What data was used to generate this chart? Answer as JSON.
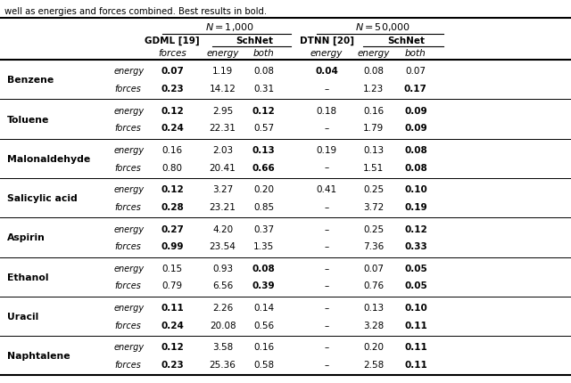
{
  "caption_top": "well as energies and forces combined. Best results in bold.",
  "molecules": [
    "Benzene",
    "Toluene",
    "Malonaldehyde",
    "Salicylic acid",
    "Aspirin",
    "Ethanol",
    "Uracil",
    "Naphtalene"
  ],
  "rows": {
    "Benzene": {
      "energy": {
        "gdml": "0.07",
        "schnet_e": "1.19",
        "schnet_b": "0.08",
        "dtnn": "0.04",
        "schnet50_e": "0.08",
        "schnet50_b": "0.07"
      },
      "forces": {
        "gdml": "0.23",
        "schnet_e": "14.12",
        "schnet_b": "0.31",
        "dtnn": "–",
        "schnet50_e": "1.23",
        "schnet50_b": "0.17"
      }
    },
    "Toluene": {
      "energy": {
        "gdml": "0.12",
        "schnet_e": "2.95",
        "schnet_b": "0.12",
        "dtnn": "0.18",
        "schnet50_e": "0.16",
        "schnet50_b": "0.09"
      },
      "forces": {
        "gdml": "0.24",
        "schnet_e": "22.31",
        "schnet_b": "0.57",
        "dtnn": "–",
        "schnet50_e": "1.79",
        "schnet50_b": "0.09"
      }
    },
    "Malonaldehyde": {
      "energy": {
        "gdml": "0.16",
        "schnet_e": "2.03",
        "schnet_b": "0.13",
        "dtnn": "0.19",
        "schnet50_e": "0.13",
        "schnet50_b": "0.08"
      },
      "forces": {
        "gdml": "0.80",
        "schnet_e": "20.41",
        "schnet_b": "0.66",
        "dtnn": "–",
        "schnet50_e": "1.51",
        "schnet50_b": "0.08"
      }
    },
    "Salicylic acid": {
      "energy": {
        "gdml": "0.12",
        "schnet_e": "3.27",
        "schnet_b": "0.20",
        "dtnn": "0.41",
        "schnet50_e": "0.25",
        "schnet50_b": "0.10"
      },
      "forces": {
        "gdml": "0.28",
        "schnet_e": "23.21",
        "schnet_b": "0.85",
        "dtnn": "–",
        "schnet50_e": "3.72",
        "schnet50_b": "0.19"
      }
    },
    "Aspirin": {
      "energy": {
        "gdml": "0.27",
        "schnet_e": "4.20",
        "schnet_b": "0.37",
        "dtnn": "–",
        "schnet50_e": "0.25",
        "schnet50_b": "0.12"
      },
      "forces": {
        "gdml": "0.99",
        "schnet_e": "23.54",
        "schnet_b": "1.35",
        "dtnn": "–",
        "schnet50_e": "7.36",
        "schnet50_b": "0.33"
      }
    },
    "Ethanol": {
      "energy": {
        "gdml": "0.15",
        "schnet_e": "0.93",
        "schnet_b": "0.08",
        "dtnn": "–",
        "schnet50_e": "0.07",
        "schnet50_b": "0.05"
      },
      "forces": {
        "gdml": "0.79",
        "schnet_e": "6.56",
        "schnet_b": "0.39",
        "dtnn": "–",
        "schnet50_e": "0.76",
        "schnet50_b": "0.05"
      }
    },
    "Uracil": {
      "energy": {
        "gdml": "0.11",
        "schnet_e": "2.26",
        "schnet_b": "0.14",
        "dtnn": "–",
        "schnet50_e": "0.13",
        "schnet50_b": "0.10"
      },
      "forces": {
        "gdml": "0.24",
        "schnet_e": "20.08",
        "schnet_b": "0.56",
        "dtnn": "–",
        "schnet50_e": "3.28",
        "schnet50_b": "0.11"
      }
    },
    "Naphtalene": {
      "energy": {
        "gdml": "0.12",
        "schnet_e": "3.58",
        "schnet_b": "0.16",
        "dtnn": "–",
        "schnet50_e": "0.20",
        "schnet50_b": "0.11"
      },
      "forces": {
        "gdml": "0.23",
        "schnet_e": "25.36",
        "schnet_b": "0.58",
        "dtnn": "–",
        "schnet50_e": "2.58",
        "schnet50_b": "0.11"
      }
    }
  },
  "bold_flags": {
    "Benzene": {
      "energy": [
        true,
        false,
        false,
        true,
        false,
        false
      ],
      "forces": [
        true,
        false,
        false,
        false,
        false,
        true
      ]
    },
    "Toluene": {
      "energy": [
        true,
        false,
        true,
        false,
        false,
        true
      ],
      "forces": [
        true,
        false,
        false,
        false,
        false,
        true
      ]
    },
    "Malonaldehyde": {
      "energy": [
        false,
        false,
        true,
        false,
        false,
        true
      ],
      "forces": [
        false,
        false,
        true,
        false,
        false,
        true
      ]
    },
    "Salicylic acid": {
      "energy": [
        true,
        false,
        false,
        false,
        false,
        true
      ],
      "forces": [
        true,
        false,
        false,
        false,
        false,
        true
      ]
    },
    "Aspirin": {
      "energy": [
        true,
        false,
        false,
        false,
        false,
        true
      ],
      "forces": [
        true,
        false,
        false,
        false,
        false,
        true
      ]
    },
    "Ethanol": {
      "energy": [
        false,
        false,
        true,
        false,
        false,
        true
      ],
      "forces": [
        false,
        false,
        true,
        false,
        false,
        true
      ]
    },
    "Uracil": {
      "energy": [
        true,
        false,
        false,
        false,
        false,
        true
      ],
      "forces": [
        true,
        false,
        false,
        false,
        false,
        true
      ]
    },
    "Naphtalene": {
      "energy": [
        true,
        false,
        false,
        false,
        false,
        true
      ],
      "forces": [
        true,
        false,
        false,
        false,
        false,
        true
      ]
    }
  },
  "col_x": {
    "mol": 0.012,
    "type": 0.2,
    "gdml": 0.302,
    "schnet_e": 0.39,
    "schnet_b": 0.462,
    "dtnn": 0.572,
    "schnet50_e": 0.654,
    "schnet50_b": 0.728
  },
  "fontsize_caption": 7.2,
  "fontsize_header": 7.5,
  "fontsize_N": 8.0,
  "fontsize_mol": 7.8,
  "fontsize_type": 7.0,
  "fontsize_data": 7.5
}
